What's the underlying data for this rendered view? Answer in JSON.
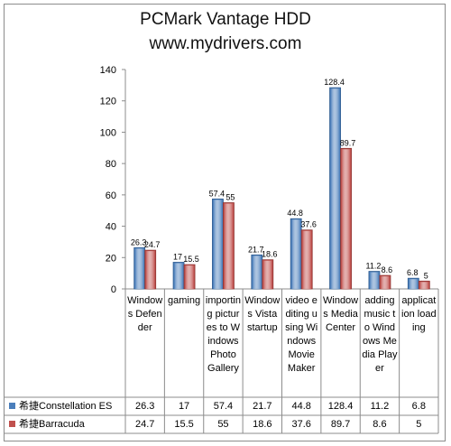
{
  "chart_data": {
    "type": "bar",
    "title": "PCMark Vantage HDD",
    "subtitle": "www.mydrivers.com",
    "categories": [
      "Windows Defender",
      "gaming",
      "importing pictures to Windows Photo Gallery",
      "Windows Vista startup",
      "video editing using Windows Movie Maker",
      "Windows Media Center",
      "adding music to Windows Media Player",
      "application loading"
    ],
    "series": [
      {
        "name": "希捷Constellation ES",
        "color": "#4a7ebb",
        "values": [
          26.3,
          17,
          57.4,
          21.7,
          44.8,
          128.4,
          11.2,
          6.8
        ],
        "labels": [
          "26.3",
          "17",
          "57.4",
          "21.7",
          "44.8",
          "128.4",
          "11.2",
          "6.8"
        ]
      },
      {
        "name": "希捷Barracuda",
        "color": "#c0504d",
        "values": [
          24.7,
          15.5,
          55,
          18.6,
          37.6,
          89.7,
          8.6,
          5
        ],
        "labels": [
          "24.7",
          "15.5",
          "55",
          "18.6",
          "37.6",
          "89.7",
          "8.6",
          "5"
        ]
      }
    ],
    "ylim": [
      0,
      140
    ],
    "yticks": [
      0,
      20,
      40,
      60,
      80,
      100,
      120,
      140
    ],
    "grid": false,
    "legend": "data-table"
  }
}
